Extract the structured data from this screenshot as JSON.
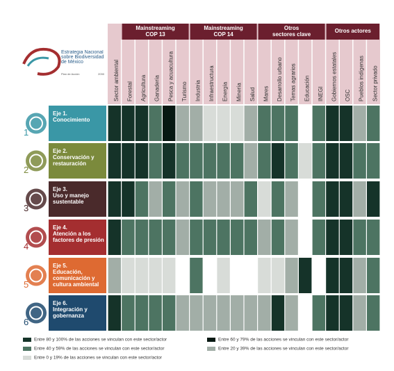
{
  "logo": {
    "title": "Estrategia Nacional sobre Biodiversidad de México",
    "subtitle": "Plan de Acción",
    "year": "2030"
  },
  "levels": [
    {
      "label": "Entre 80 y 100% de las acciones se vinculan con este sector/actor",
      "color": "#153329"
    },
    {
      "label": "Entre 60 y 79% de las acciones se vinculan con este sector/actor",
      "color": "#071812"
    },
    {
      "label": "Entre 40 y 59% de las acciones se vinculan con este sector/actor",
      "color": "#4d7462"
    },
    {
      "label": "Entre 20 y 39% de las acciones se vinculan con este sector/actor",
      "color": "#a2aea7"
    },
    {
      "label": "Entre 0 y 19% de las acciones se vinculan con este sector/actor",
      "color": "#d8dcd8"
    }
  ],
  "groups": [
    {
      "label": "Mainstreaming COP 13",
      "start": 1,
      "span": 5
    },
    {
      "label": "Mainstreaming COP 14",
      "start": 6,
      "span": 5
    },
    {
      "label": "Otros sectores clave",
      "start": 11,
      "span": 5
    },
    {
      "label": "Otros actores",
      "start": 16,
      "span": 4
    }
  ],
  "columns": [
    "Sector ambiental",
    "Forestal",
    "Agricultura",
    "Ganadería",
    "Pesca y acuacultura",
    "Turismo",
    "Industria",
    "Infraestructura",
    "Energía",
    "Minería",
    "Salud",
    "Mares",
    "Desarrollo urbano",
    "Temas agrarios",
    "Educación",
    "INEGI",
    "Gobiernos estatales",
    "OSC",
    "Pueblos indígenas",
    "Sector privado"
  ],
  "rows": [
    {
      "number": "1",
      "axis": "Eje 1.",
      "name": "Conocimiento",
      "color": "#3a97a6",
      "cells": [
        0,
        0,
        0,
        2,
        1,
        3,
        3,
        4,
        4,
        4,
        3,
        2,
        2,
        2,
        null,
        2,
        0,
        0,
        3,
        2
      ]
    },
    {
      "number": "2",
      "axis": "Eje 2.",
      "name": "Conservación y restauración",
      "color": "#7b8a3c",
      "cells": [
        0,
        0,
        0,
        2,
        0,
        2,
        2,
        2,
        2,
        2,
        3,
        2,
        0,
        2,
        4,
        2,
        0,
        0,
        2,
        2
      ]
    },
    {
      "number": "3",
      "axis": "Eje 3.",
      "name": "Uso y manejo sustentable",
      "color": "#4a2a2b",
      "cells": [
        0,
        0,
        2,
        3,
        2,
        3,
        2,
        3,
        3,
        3,
        2,
        4,
        2,
        3,
        null,
        2,
        0,
        0,
        3,
        0
      ]
    },
    {
      "number": "4",
      "axis": "Eje 4.",
      "name": "Atención a los factores de presión",
      "color": "#a42e30",
      "cells": [
        0,
        2,
        2,
        2,
        2,
        3,
        2,
        2,
        2,
        2,
        2,
        3,
        2,
        3,
        null,
        2,
        0,
        0,
        2,
        2
      ]
    },
    {
      "number": "5",
      "axis": "Eje 5.",
      "name": "Educación, comunicación y cultura ambiental",
      "color": "#de6a32",
      "cells": [
        3,
        4,
        4,
        4,
        4,
        null,
        2,
        null,
        4,
        null,
        null,
        4,
        4,
        3,
        0,
        null,
        0,
        0,
        3,
        2
      ]
    },
    {
      "number": "6",
      "axis": "Eje 6.",
      "name": "Integración y gobernanza",
      "color": "#1f4a6e",
      "cells": [
        0,
        2,
        2,
        2,
        2,
        3,
        3,
        3,
        3,
        3,
        3,
        3,
        0,
        3,
        null,
        2,
        0,
        0,
        3,
        2
      ]
    }
  ]
}
